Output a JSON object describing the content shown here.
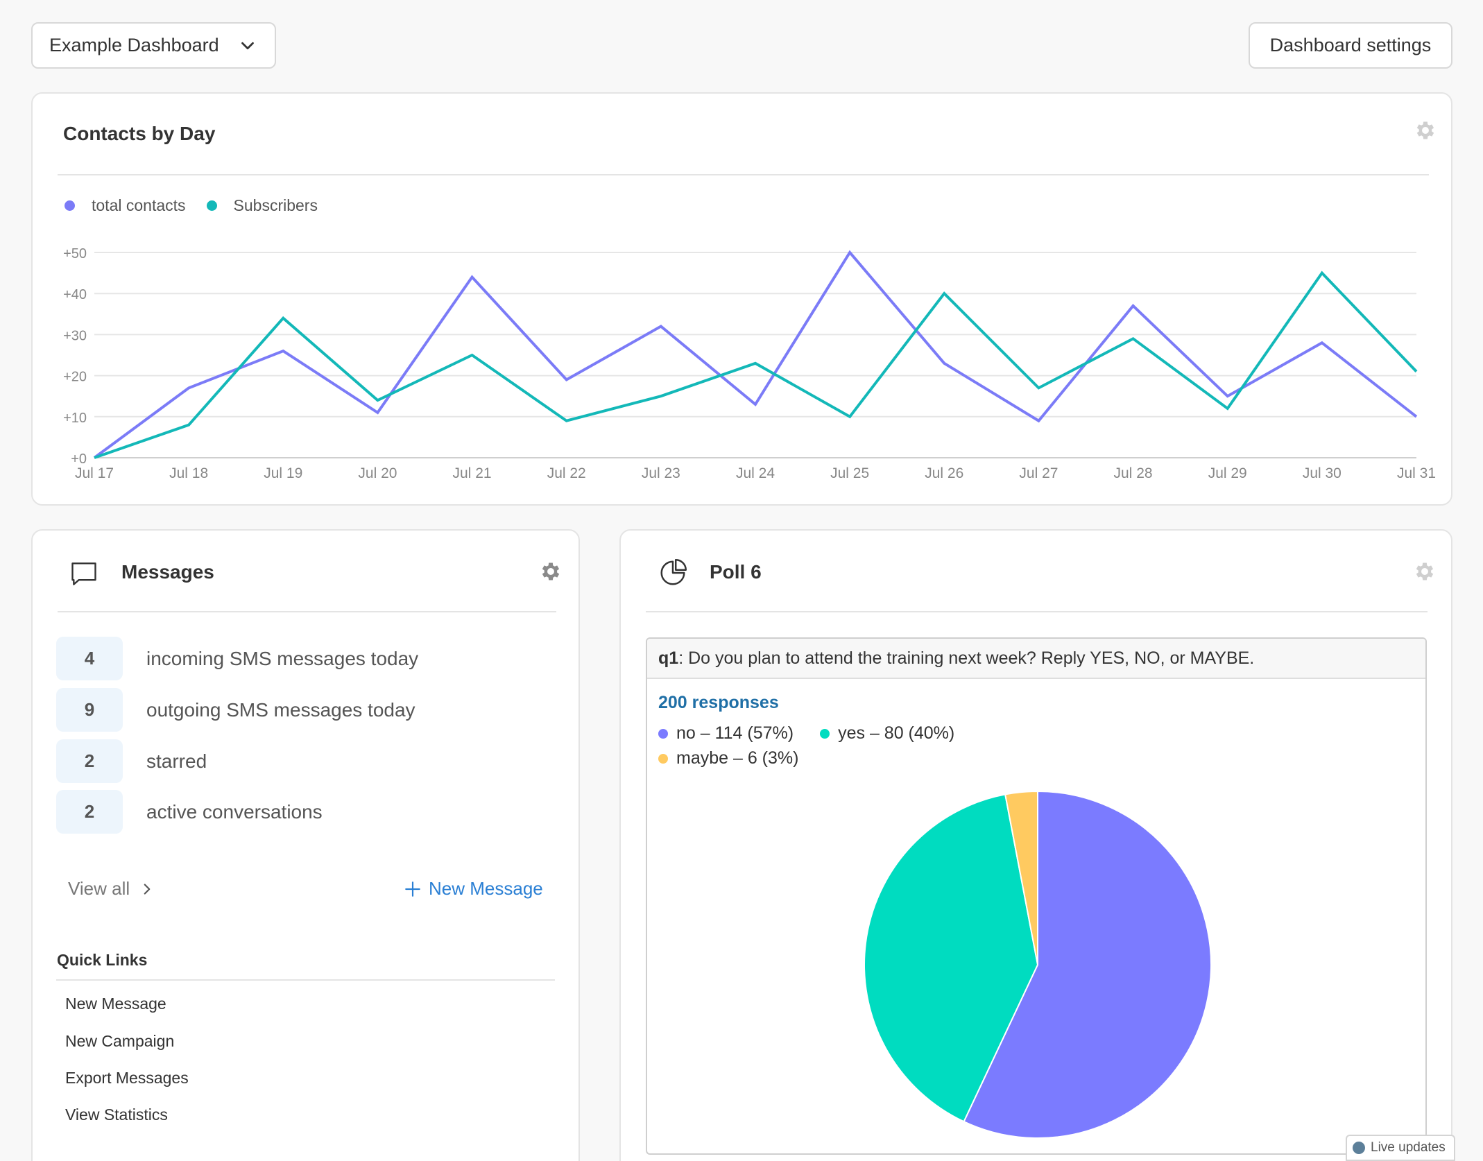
{
  "header": {
    "dashboard_select": "Example Dashboard",
    "settings_label": "Dashboard settings"
  },
  "contacts_card": {
    "title": "Contacts by Day"
  },
  "chart_data": {
    "type": "line",
    "title": "Contacts by Day",
    "categories": [
      "Jul 17",
      "Jul 18",
      "Jul 19",
      "Jul 20",
      "Jul 21",
      "Jul 22",
      "Jul 23",
      "Jul 24",
      "Jul 25",
      "Jul 26",
      "Jul 27",
      "Jul 28",
      "Jul 29",
      "Jul 30",
      "Jul 31"
    ],
    "y_ticks": [
      "+0",
      "+10",
      "+20",
      "+30",
      "+40",
      "+50"
    ],
    "ylim": [
      0,
      50
    ],
    "grid": true,
    "legend_placement": "top-left",
    "series": [
      {
        "name": "total contacts",
        "color": "#7b7bf7",
        "values": [
          0,
          17,
          26,
          11,
          44,
          19,
          32,
          13,
          50,
          23,
          9,
          37,
          15,
          28,
          10
        ]
      },
      {
        "name": "Subscribers",
        "color": "#13b8b8",
        "values": [
          0,
          8,
          34,
          14,
          25,
          9,
          15,
          23,
          10,
          40,
          17,
          29,
          12,
          45,
          21
        ]
      }
    ]
  },
  "messages_card": {
    "title": "Messages",
    "stats": [
      {
        "count": "4",
        "label": "incoming SMS messages today"
      },
      {
        "count": "9",
        "label": "outgoing SMS messages today"
      },
      {
        "count": "2",
        "label": "starred"
      },
      {
        "count": "2",
        "label": "active conversations"
      }
    ],
    "view_all": "View all",
    "new_message": "New Message",
    "quick_links_title": "Quick Links",
    "quick_links": [
      "New Message",
      "New Campaign",
      "Export Messages",
      "View Statistics"
    ]
  },
  "poll_card": {
    "title": "Poll 6",
    "question_id": "q1",
    "question_text": ": Do you plan to attend the training next week? Reply YES, NO, or MAYBE.",
    "responses": "200 responses",
    "legend": [
      {
        "label": "no – 114 (57%)",
        "color": "#7b7bff"
      },
      {
        "label": "yes – 80 (40%)",
        "color": "#00dcc0"
      },
      {
        "label": "maybe – 6 (3%)",
        "color": "#ffca60"
      }
    ],
    "pie": {
      "type": "pie",
      "slices": [
        {
          "name": "no",
          "value": 114,
          "color": "#7b7bff"
        },
        {
          "name": "yes",
          "value": 80,
          "color": "#00dcc0"
        },
        {
          "name": "maybe",
          "value": 6,
          "color": "#ffca60"
        }
      ]
    }
  },
  "live_updates": "Live updates"
}
